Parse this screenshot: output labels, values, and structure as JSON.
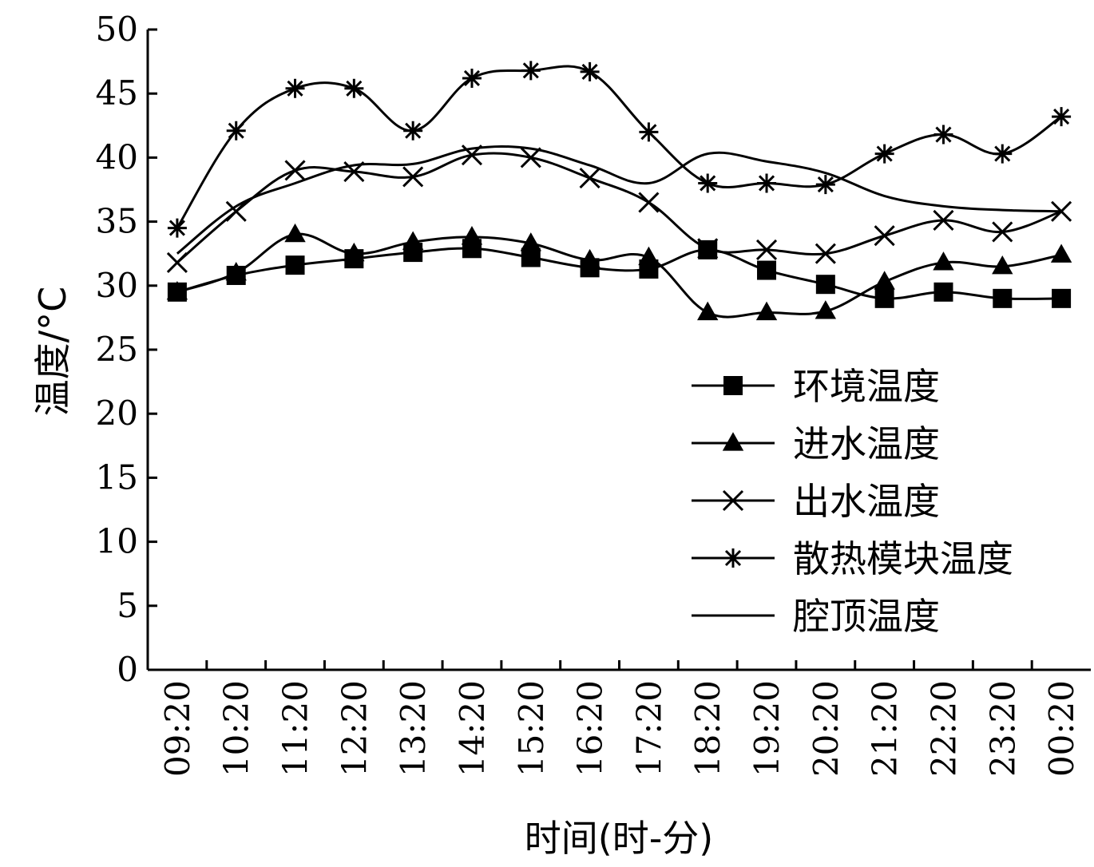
{
  "chart_data": {
    "type": "line",
    "xlabel": "时间(时-分)",
    "ylabel": "温度/°C",
    "ylim": [
      0,
      50
    ],
    "yticks": [
      "0",
      "5",
      "10",
      "15",
      "20",
      "25",
      "30",
      "35",
      "40",
      "45",
      "50"
    ],
    "categories": [
      "09:20",
      "10:20",
      "11:20",
      "12:20",
      "13:20",
      "14:20",
      "15:20",
      "16:20",
      "17:20",
      "18:20",
      "19:20",
      "20:20",
      "21:20",
      "22:20",
      "23:20",
      "00:20"
    ],
    "legend_position": "lower-right",
    "grid": false,
    "series": [
      {
        "name": "环境温度",
        "marker": "square",
        "values": [
          29.5,
          30.8,
          31.6,
          32.1,
          32.6,
          32.9,
          32.2,
          31.4,
          31.3,
          32.8,
          31.2,
          30.1,
          29.0,
          29.5,
          29.0,
          29.0
        ]
      },
      {
        "name": "进水温度",
        "marker": "triangle",
        "values": [
          29.5,
          31.0,
          34.0,
          32.5,
          33.4,
          33.8,
          33.3,
          32.0,
          32.2,
          27.9,
          27.9,
          28.0,
          30.3,
          31.8,
          31.5,
          32.4
        ]
      },
      {
        "name": "出水温度",
        "marker": "x",
        "values": [
          31.8,
          35.8,
          39.0,
          38.9,
          38.5,
          40.2,
          40.0,
          38.4,
          36.5,
          32.9,
          32.8,
          32.5,
          33.9,
          35.1,
          34.2,
          35.8
        ]
      },
      {
        "name": "散热模块温度",
        "marker": "asterisk",
        "values": [
          34.5,
          42.1,
          45.4,
          45.4,
          42.1,
          46.2,
          46.8,
          46.7,
          42.0,
          38.0,
          38.0,
          37.9,
          40.3,
          41.8,
          40.3,
          43.2
        ]
      },
      {
        "name": "腔顶温度",
        "marker": "none",
        "values": [
          32.5,
          36.2,
          38.0,
          39.4,
          39.5,
          40.7,
          40.7,
          39.4,
          38.0,
          40.3,
          39.7,
          38.8,
          37.0,
          36.2,
          35.9,
          35.8
        ]
      }
    ]
  }
}
